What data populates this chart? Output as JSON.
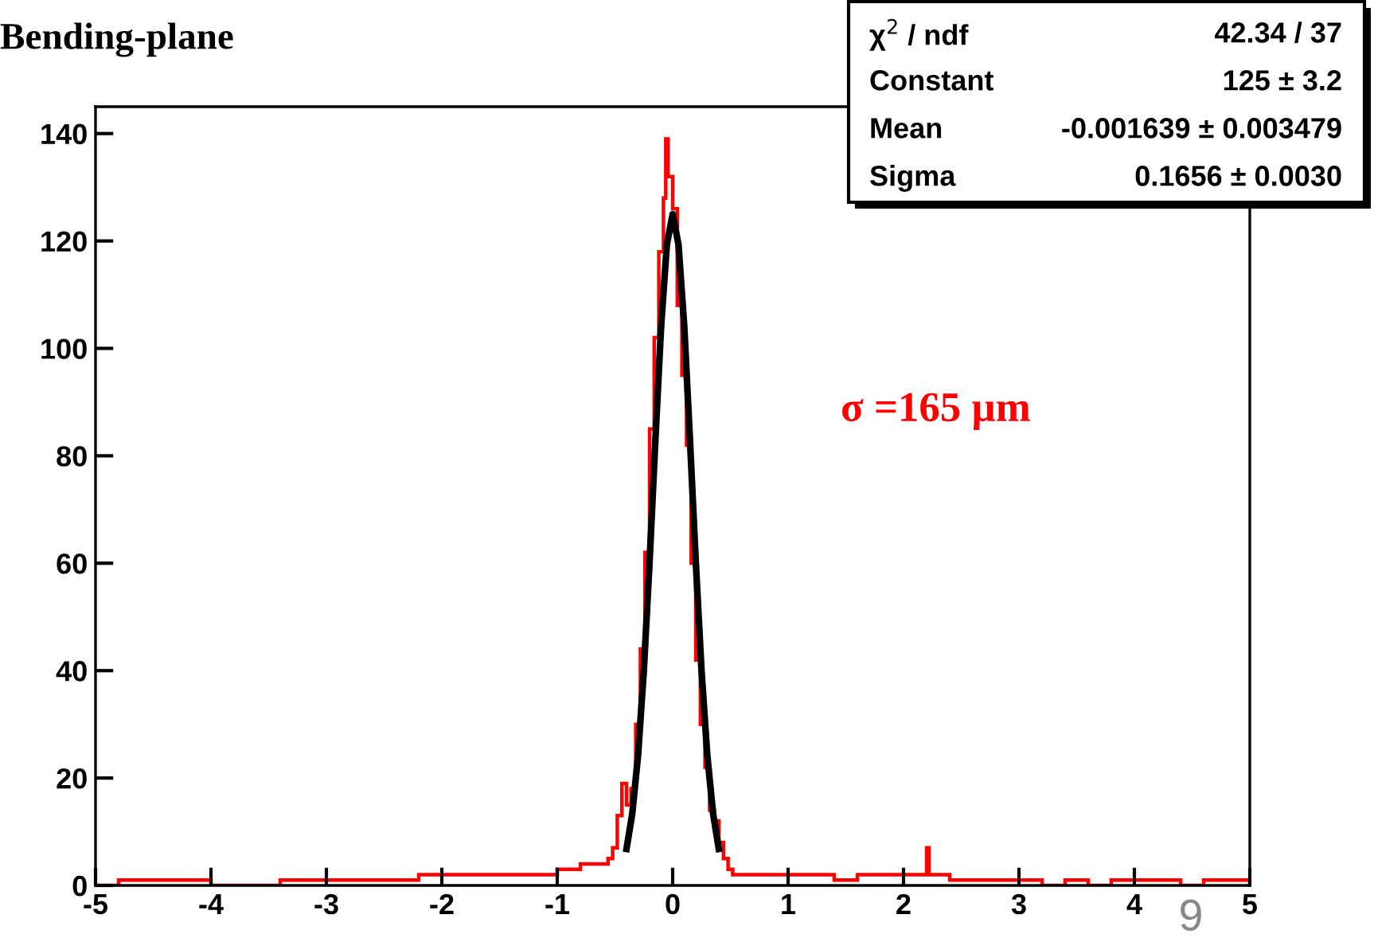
{
  "chart_data": {
    "type": "histogram",
    "title": "Bending-plane",
    "series": [
      {
        "color": "#ff0000",
        "bins": [
          -5,
          -4.8,
          -4.6,
          -4.4,
          -4.2,
          -4,
          -3.8,
          -3.6,
          -3.4,
          -3.2,
          -3,
          -2.8,
          -2.6,
          -2.4,
          -2.2,
          -2,
          -1.8,
          -1.6,
          -1.4,
          -1.2,
          -1,
          -0.8,
          -0.6,
          -0.56,
          -0.52,
          -0.48,
          -0.44,
          -0.4,
          -0.36,
          -0.32,
          -0.28,
          -0.24,
          -0.2,
          -0.16,
          -0.12,
          -0.08,
          -0.06,
          -0.04,
          0,
          0.04,
          0.08,
          0.12,
          0.16,
          0.2,
          0.24,
          0.28,
          0.32,
          0.36,
          0.4,
          0.44,
          0.48,
          0.52,
          0.56,
          0.6,
          0.8,
          1,
          1.2,
          1.4,
          1.6,
          1.8,
          2,
          2.2,
          2.22,
          2.4,
          2.6,
          2.8,
          3,
          3.2,
          3.4,
          3.6,
          3.8,
          4,
          4.2,
          4.4,
          4.6,
          4.8,
          5
        ],
        "values": [
          0,
          1,
          1,
          1,
          1,
          0,
          0,
          0,
          1,
          1,
          1,
          1,
          1,
          1,
          2,
          2,
          2,
          2,
          2,
          2,
          3,
          4,
          4,
          5,
          7,
          13,
          19,
          15,
          18,
          30,
          44,
          62,
          85,
          102,
          118,
          128,
          139,
          132,
          126,
          108,
          95,
          82,
          60,
          42,
          30,
          22,
          14,
          12,
          8,
          5,
          3,
          2,
          2,
          2,
          2,
          2,
          2,
          1,
          2,
          2,
          2,
          7,
          2,
          1,
          1,
          1,
          1,
          0,
          1,
          0,
          1,
          1,
          1,
          0,
          1,
          1
        ]
      },
      {
        "type": "line",
        "color": "#000000",
        "x": [
          -0.4,
          -0.35,
          -0.3,
          -0.25,
          -0.2,
          -0.15,
          -0.1,
          -0.05,
          0,
          0.05,
          0.1,
          0.15,
          0.2,
          0.25,
          0.3,
          0.35,
          0.4
        ],
        "values": [
          6.8,
          13.4,
          24.2,
          40.0,
          60.3,
          82.9,
          104.2,
          119.4,
          125,
          119.4,
          104.2,
          82.9,
          60.3,
          40.0,
          24.2,
          13.4,
          6.8
        ]
      }
    ],
    "xlim": [
      -5,
      5
    ],
    "ylim": [
      0,
      145
    ],
    "xticks": [
      -5,
      -4,
      -3,
      -2,
      -1,
      0,
      1,
      2,
      3,
      4,
      5
    ],
    "yticks": [
      0,
      20,
      40,
      60,
      80,
      100,
      120,
      140
    ],
    "grid": false,
    "legend": false,
    "annotations": [
      "σ =165 µm",
      "χ$^{2}$ / ndf",
      "42.34 / 37",
      "Constant",
      "125 ± 3.2",
      "Mean",
      "-0.001639 ± 0.003479",
      "Sigma",
      "0.1656 ± 0.0030",
      "9"
    ]
  }
}
